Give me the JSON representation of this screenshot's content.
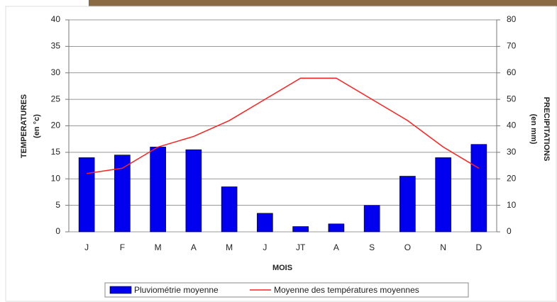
{
  "chart_data": {
    "type": "bar-line",
    "categories": [
      "J",
      "F",
      "M",
      "A",
      "M",
      "J",
      "JT",
      "A",
      "S",
      "O",
      "N",
      "D"
    ],
    "series": [
      {
        "name": "Pluviométrie moyenne",
        "type": "bar",
        "axis": "y2",
        "color": "#0000ee",
        "values": [
          28,
          29,
          32,
          31,
          17,
          7,
          2,
          3,
          10,
          21,
          28,
          33
        ]
      },
      {
        "name": "Moyenne des températures moyennes",
        "type": "line",
        "axis": "y",
        "color": "#ff2020",
        "values": [
          11,
          12,
          16,
          18,
          21,
          25,
          29,
          29,
          25,
          21,
          16,
          12
        ]
      }
    ],
    "ylabel": "TEMPERATURES",
    "ylabel_unit": "(en °c)",
    "y2label": "PRECIPITATIONS",
    "y2label_unit": "(en mm)",
    "xlabel": "MOIS",
    "ylim": [
      0,
      40
    ],
    "yticks": [
      0,
      5,
      10,
      15,
      20,
      25,
      30,
      35,
      40
    ],
    "y2lim": [
      0,
      80
    ],
    "y2ticks": [
      0,
      10,
      20,
      30,
      40,
      50,
      60,
      70,
      80
    ],
    "grid": true,
    "legend": "bottom"
  }
}
